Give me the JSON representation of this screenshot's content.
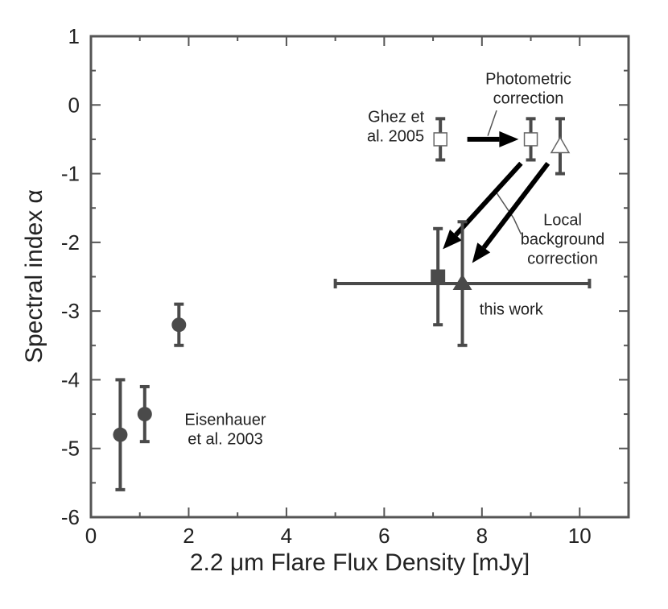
{
  "chart_data": {
    "type": "scatter",
    "title": "",
    "xlabel": "2.2 μm Flare Flux Density [mJy]",
    "ylabel": "Spectral index α",
    "xlim": [
      0,
      11
    ],
    "ylim": [
      -6,
      1
    ],
    "xticks": [
      0,
      2,
      4,
      6,
      8,
      10
    ],
    "xtick_labels": [
      "0",
      "2",
      "4",
      "6",
      "8",
      "10"
    ],
    "yticks": [
      1,
      0,
      -1,
      -2,
      -3,
      -4,
      -5,
      -6
    ],
    "ytick_labels": [
      "1",
      "0",
      "-1",
      "-2",
      "-3",
      "-4",
      "-5",
      "-6"
    ],
    "grid": false,
    "series": [
      {
        "marker": "filled-circle",
        "color": "#4a4a4a",
        "points": [
          {
            "x": 0.6,
            "y": -4.8,
            "ylo": -5.6,
            "yhi": -4.0
          },
          {
            "x": 1.1,
            "y": -4.5,
            "ylo": -4.9,
            "yhi": -4.1
          },
          {
            "x": 1.8,
            "y": -3.2,
            "ylo": -3.5,
            "yhi": -2.9
          }
        ]
      },
      {
        "marker": "open-square",
        "color": "#4a4a4a",
        "points": [
          {
            "x": 7.15,
            "y": -0.5,
            "ylo": -0.8,
            "yhi": -0.2
          },
          {
            "x": 9.0,
            "y": -0.5,
            "ylo": -0.8,
            "yhi": -0.2
          }
        ]
      },
      {
        "marker": "open-triangle",
        "color": "#4a4a4a",
        "points": [
          {
            "x": 9.6,
            "y": -0.6,
            "ylo": -1.0,
            "yhi": -0.2
          }
        ]
      },
      {
        "marker": "filled-square",
        "color": "#4a4a4a",
        "points": [
          {
            "x": 7.1,
            "y": -2.5,
            "ylo": -3.2,
            "yhi": -1.8
          }
        ]
      },
      {
        "marker": "filled-triangle",
        "color": "#4a4a4a",
        "points": [
          {
            "x": 7.6,
            "y": -2.6,
            "ylo": -3.5,
            "yhi": -1.7,
            "xlo": 5.0,
            "xhi": 10.2
          }
        ]
      }
    ],
    "arrows": [
      {
        "from": [
          7.7,
          -0.5
        ],
        "to": [
          8.75,
          -0.5
        ],
        "style": "horizontal"
      },
      {
        "from": [
          8.8,
          -0.85
        ],
        "to": [
          7.2,
          -2.1
        ],
        "style": "diagonal"
      },
      {
        "from": [
          9.35,
          -0.85
        ],
        "to": [
          7.8,
          -2.3
        ],
        "style": "diagonal"
      }
    ],
    "leaders": [
      {
        "from": [
          8.3,
          -0.08
        ],
        "to": [
          8.12,
          -0.45
        ]
      },
      {
        "from": [
          8.3,
          -1.28
        ],
        "to": [
          8.65,
          -1.65
        ]
      },
      {
        "from": [
          8.8,
          -1.88
        ],
        "to": [
          8.65,
          -1.65
        ]
      }
    ],
    "annotations": [
      {
        "lines": [
          "Photometric",
          "correction"
        ],
        "x": 8.95,
        "y": 0.3,
        "anchor": "middle"
      },
      {
        "lines": [
          "Ghez et",
          "al. 2005"
        ],
        "x": 6.82,
        "y": -0.25,
        "anchor": "end"
      },
      {
        "lines": [
          "Local",
          "background",
          "correction"
        ],
        "x": 9.65,
        "y": -1.75,
        "anchor": "middle"
      },
      {
        "lines": [
          "this work"
        ],
        "x": 7.95,
        "y": -3.05,
        "anchor": "start"
      },
      {
        "lines": [
          "Eisenhauer",
          "et al. 2003"
        ],
        "x": 2.75,
        "y": -4.66,
        "anchor": "middle"
      }
    ]
  }
}
